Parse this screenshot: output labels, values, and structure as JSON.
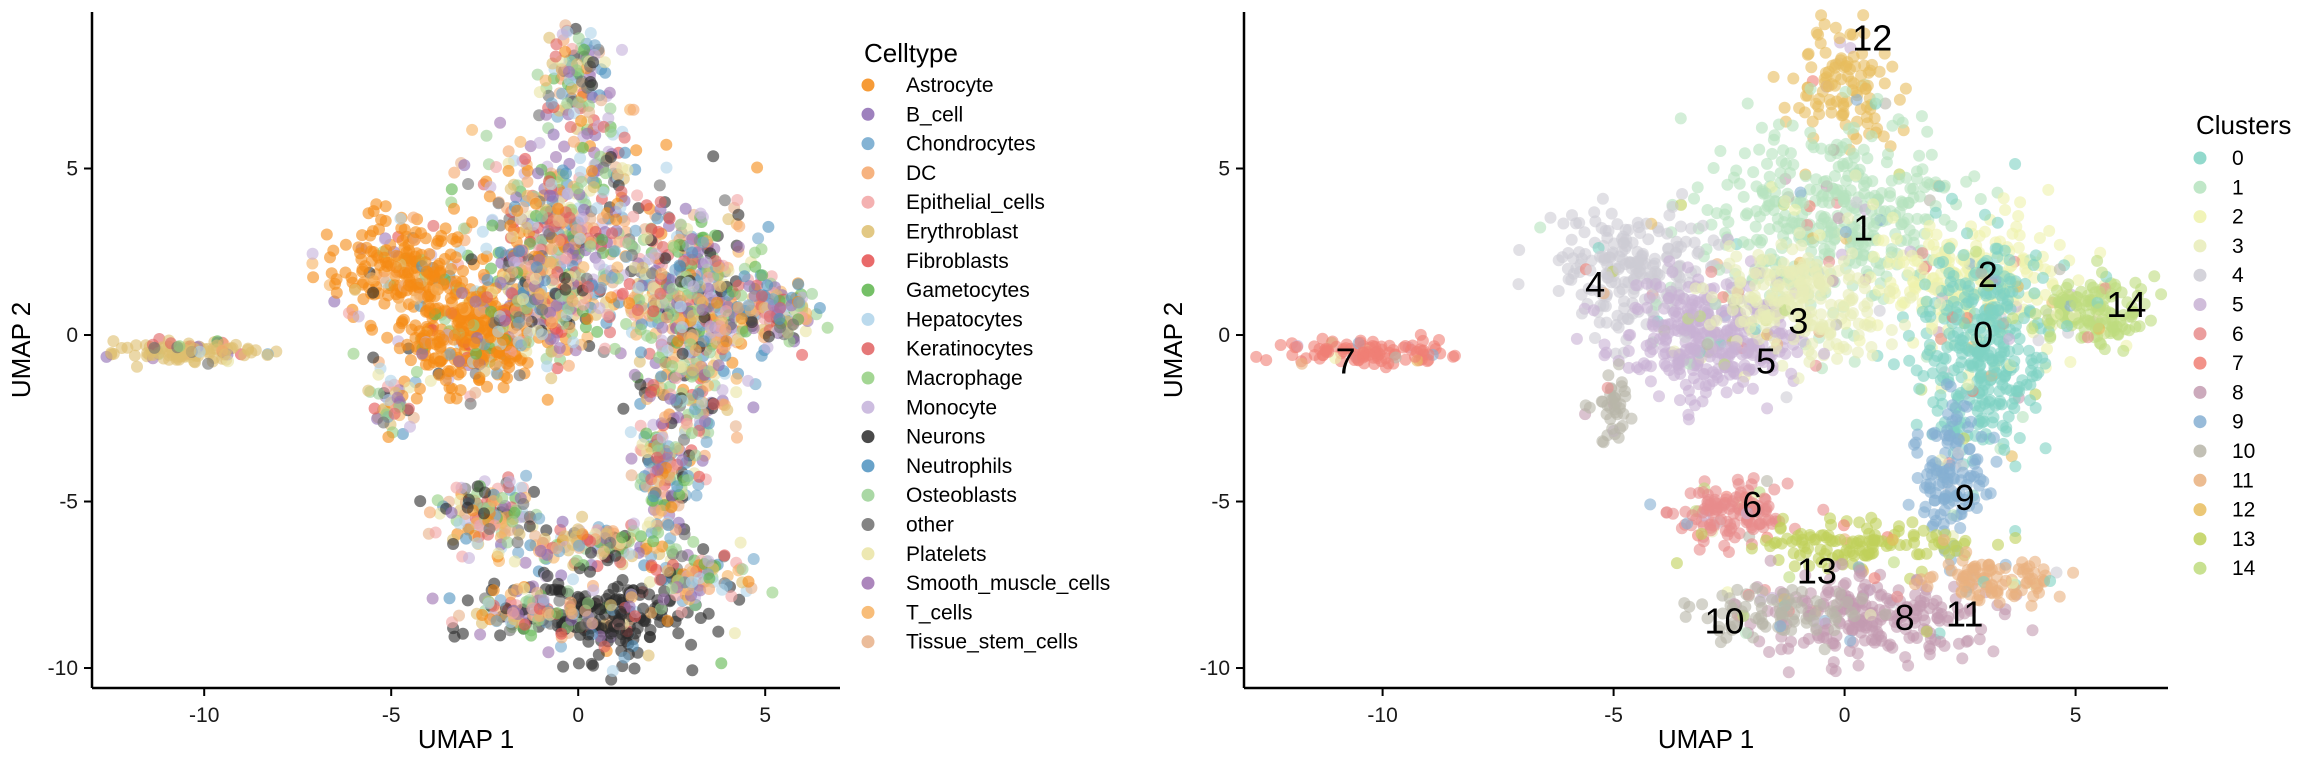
{
  "chart_data": [
    {
      "type": "scatter",
      "xlabel": "UMAP 1",
      "ylabel": "UMAP 2",
      "xlim": [
        -13,
        7
      ],
      "ylim": [
        -10.6,
        9.7
      ],
      "xticks": [
        -10,
        -5,
        0,
        5
      ],
      "xtick_labels": [
        "-10",
        "-5",
        "0",
        "5"
      ],
      "yticks": [
        -10,
        -5,
        0,
        5
      ],
      "ytick_labels": [
        "-10",
        "-5",
        "0",
        "5"
      ],
      "grid": false,
      "legend": {
        "title": "Celltype",
        "placement": "right",
        "entries": [
          {
            "label": "Astrocyte",
            "color": "#F58A14"
          },
          {
            "label": "B_cell",
            "color": "#8D6BB3"
          },
          {
            "label": "Chondrocytes",
            "color": "#6FA6CC"
          },
          {
            "label": "DC",
            "color": "#F5A66A"
          },
          {
            "label": "Epithelial_cells",
            "color": "#F2A3A3"
          },
          {
            "label": "Erythroblast",
            "color": "#DDBE6E"
          },
          {
            "label": "Fibroblasts",
            "color": "#E55050"
          },
          {
            "label": "Gametocytes",
            "color": "#5DB54C"
          },
          {
            "label": "Hepatocytes",
            "color": "#AFD3EA"
          },
          {
            "label": "Keratinocytes",
            "color": "#E06060"
          },
          {
            "label": "Macrophage",
            "color": "#93CF80"
          },
          {
            "label": "Monocyte",
            "color": "#C4B1DA"
          },
          {
            "label": "Neurons",
            "color": "#2A2A2A"
          },
          {
            "label": "Neutrophils",
            "color": "#4E92C0"
          },
          {
            "label": "Osteoblasts",
            "color": "#9BD195"
          },
          {
            "label": "other",
            "color": "#6E6E6E"
          },
          {
            "label": "Platelets",
            "color": "#EAE4A4"
          },
          {
            "label": "Smooth_muscle_cells",
            "color": "#9D71B0"
          },
          {
            "label": "T_cells",
            "color": "#F7B261"
          },
          {
            "label": "Tissue_stem_cells",
            "color": "#E8B088"
          }
        ]
      }
    },
    {
      "type": "scatter",
      "xlabel": "UMAP 1",
      "ylabel": "UMAP 2",
      "xlim": [
        -13,
        7
      ],
      "ylim": [
        -10.6,
        9.7
      ],
      "xticks": [
        -10,
        -5,
        0,
        5
      ],
      "xtick_labels": [
        "-10",
        "-5",
        "0",
        "5"
      ],
      "yticks": [
        -10,
        -5,
        0,
        5
      ],
      "ytick_labels": [
        "-10",
        "-5",
        "0",
        "5"
      ],
      "grid": false,
      "legend": {
        "title": "Clusters",
        "placement": "right",
        "entries": [
          {
            "label": "0",
            "color": "#7FD2C3"
          },
          {
            "label": "1",
            "color": "#B5E3BE"
          },
          {
            "label": "2",
            "color": "#EEF2AC"
          },
          {
            "label": "3",
            "color": "#E8ECB8"
          },
          {
            "label": "4",
            "color": "#CDCBD4"
          },
          {
            "label": "5",
            "color": "#C8B1D4"
          },
          {
            "label": "6",
            "color": "#E88C8C"
          },
          {
            "label": "7",
            "color": "#F07F74"
          },
          {
            "label": "8",
            "color": "#C39BB0"
          },
          {
            "label": "9",
            "color": "#86AFD2"
          },
          {
            "label": "10",
            "color": "#B7B5A8"
          },
          {
            "label": "11",
            "color": "#E9B07E"
          },
          {
            "label": "12",
            "color": "#E7BD5E"
          },
          {
            "label": "13",
            "color": "#BFD15A"
          },
          {
            "label": "14",
            "color": "#BEDC7E"
          }
        ]
      },
      "cluster_labels": [
        {
          "label": "12",
          "x": 0.6,
          "y": 8.9
        },
        {
          "label": "1",
          "x": 0.4,
          "y": 3.2
        },
        {
          "label": "4",
          "x": -5.4,
          "y": 1.5
        },
        {
          "label": "2",
          "x": 3.1,
          "y": 1.8
        },
        {
          "label": "14",
          "x": 6.1,
          "y": 0.9
        },
        {
          "label": "3",
          "x": -1.0,
          "y": 0.4
        },
        {
          "label": "0",
          "x": 3.0,
          "y": 0.0
        },
        {
          "label": "5",
          "x": -1.7,
          "y": -0.8
        },
        {
          "label": "7",
          "x": -10.8,
          "y": -0.8
        },
        {
          "label": "9",
          "x": 2.6,
          "y": -4.9
        },
        {
          "label": "6",
          "x": -2.0,
          "y": -5.1
        },
        {
          "label": "13",
          "x": -0.6,
          "y": -7.1
        },
        {
          "label": "10",
          "x": -2.6,
          "y": -8.6
        },
        {
          "label": "8",
          "x": 1.3,
          "y": -8.5
        },
        {
          "label": "11",
          "x": 2.6,
          "y": -8.4
        }
      ]
    }
  ]
}
